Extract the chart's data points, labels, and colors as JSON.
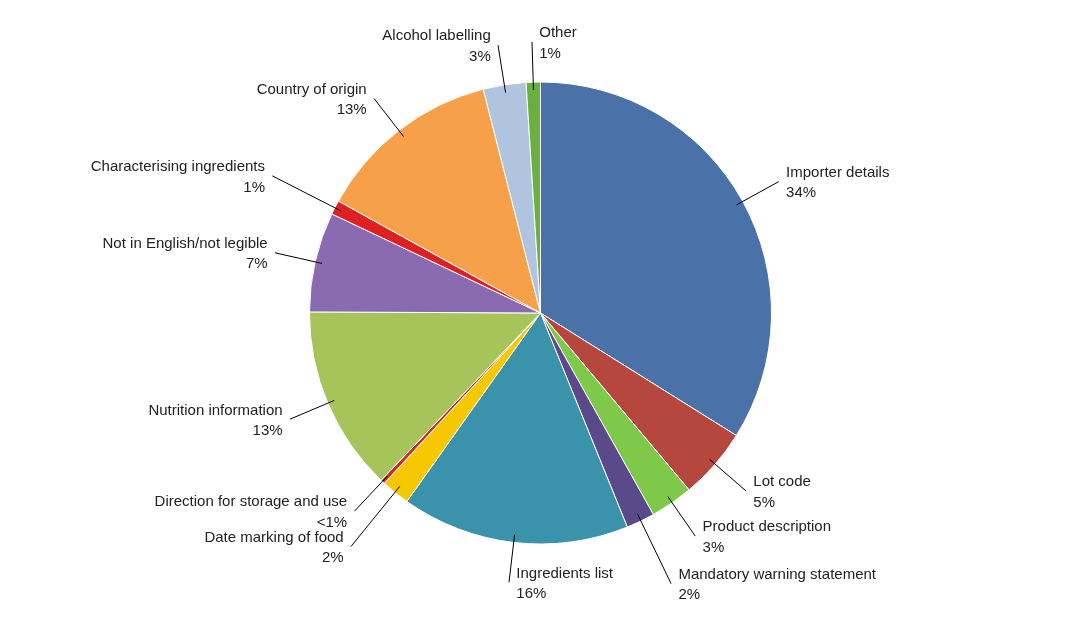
{
  "chart_data": {
    "type": "pie",
    "categories": [
      "Importer details",
      "Lot code",
      "Product description",
      "Mandatory warning statement",
      "Ingredients list",
      "Date marking of food",
      "Direction for storage and use",
      "Nutrition information",
      "Not in English/not legible",
      "Characterising ingredients",
      "Country of origin",
      "Alcohol labelling",
      "Other"
    ],
    "values": [
      34,
      5,
      3,
      2,
      16,
      2,
      0.3,
      13,
      7,
      1,
      13,
      3,
      1
    ],
    "value_labels": [
      "34%",
      "5%",
      "3%",
      "2%",
      "16%",
      "2%",
      "<1%",
      "13%",
      "7%",
      "1%",
      "13%",
      "3%",
      "1%"
    ],
    "colors": [
      "#4a72a8",
      "#b5473f",
      "#7fc94a",
      "#5a4a8a",
      "#3a93aa",
      "#f5c800",
      "#c03030",
      "#a6c45a",
      "#8a6ab0",
      "#e02020",
      "#f7a04a",
      "#b0c4e0",
      "#6ab040"
    ]
  }
}
